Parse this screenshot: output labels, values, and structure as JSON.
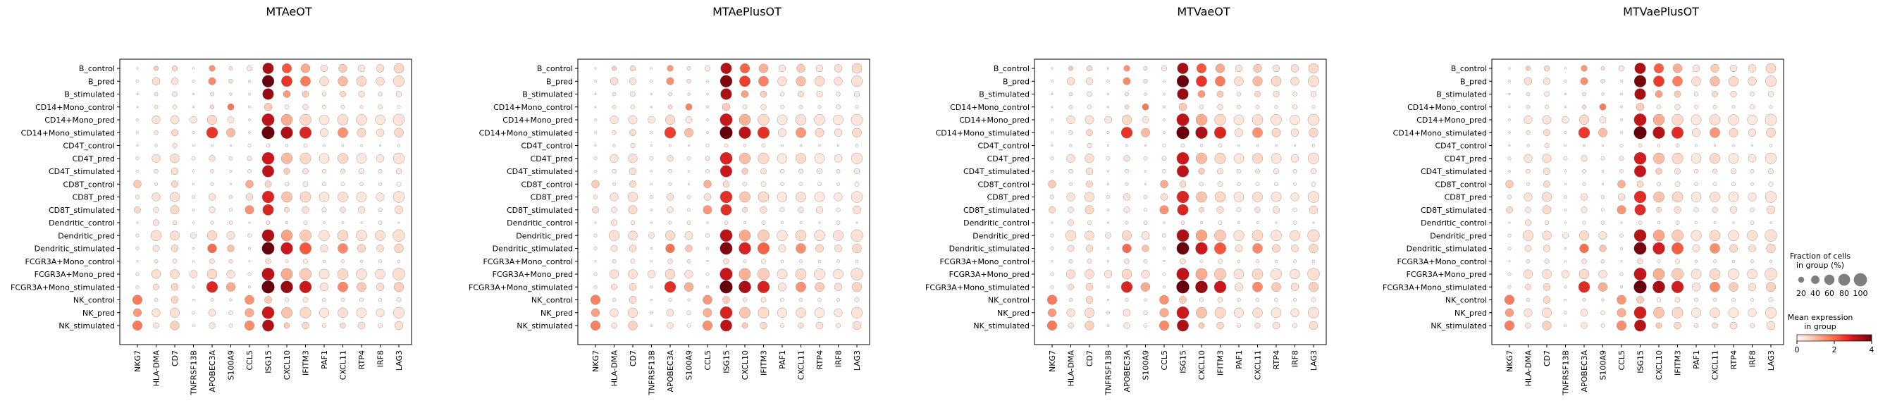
{
  "chart_data": {
    "type": "dotplot",
    "genes": [
      "NKG7",
      "HLA-DMA",
      "CD7",
      "TNFRSF13B",
      "APOBEC3A",
      "S100A9",
      "CCL5",
      "ISG15",
      "CXCL10",
      "IFITM3",
      "PAF1",
      "CXCL11",
      "RTP4",
      "IRF8",
      "LAG3"
    ],
    "groups": [
      "B_control",
      "B_pred",
      "B_stimulated",
      "CD14+Mono_control",
      "CD14+Mono_pred",
      "CD14+Mono_stimulated",
      "CD4T_control",
      "CD4T_pred",
      "CD4T_stimulated",
      "CD8T_control",
      "CD8T_pred",
      "CD8T_stimulated",
      "Dendritic_control",
      "Dendritic_pred",
      "Dendritic_stimulated",
      "FCGR3A+Mono_control",
      "FCGR3A+Mono_pred",
      "FCGR3A+Mono_stimulated",
      "NK_control",
      "NK_pred",
      "NK_stimulated"
    ],
    "panels": [
      {
        "title": "MTAeOT"
      },
      {
        "title": "MTAePlusOT"
      },
      {
        "title": "MTVaeOT"
      },
      {
        "title": "MTVaePlusOT"
      }
    ],
    "fraction_pct": [
      [
        2,
        12,
        18,
        2,
        22,
        8,
        18,
        72,
        55,
        48,
        28,
        40,
        28,
        35,
        58
      ],
      [
        3,
        35,
        28,
        4,
        32,
        10,
        3,
        85,
        70,
        60,
        50,
        55,
        58,
        42,
        72
      ],
      [
        2,
        8,
        15,
        2,
        8,
        4,
        3,
        75,
        30,
        25,
        10,
        20,
        22,
        10,
        18
      ],
      [
        2,
        8,
        10,
        2,
        10,
        25,
        3,
        35,
        10,
        18,
        8,
        8,
        6,
        12,
        6
      ],
      [
        3,
        40,
        45,
        30,
        55,
        25,
        3,
        90,
        75,
        75,
        60,
        68,
        68,
        58,
        78
      ],
      [
        3,
        10,
        25,
        4,
        75,
        45,
        3,
        95,
        85,
        82,
        40,
        60,
        45,
        35,
        50
      ],
      [
        2,
        4,
        12,
        2,
        3,
        2,
        6,
        8,
        4,
        8,
        3,
        3,
        3,
        2,
        4
      ],
      [
        6,
        40,
        48,
        8,
        22,
        8,
        12,
        88,
        72,
        72,
        58,
        62,
        60,
        35,
        72
      ],
      [
        3,
        10,
        28,
        2,
        8,
        3,
        8,
        82,
        22,
        20,
        10,
        12,
        18,
        8,
        18
      ],
      [
        35,
        6,
        25,
        2,
        6,
        2,
        35,
        25,
        10,
        15,
        8,
        8,
        8,
        6,
        12
      ],
      [
        10,
        40,
        55,
        6,
        28,
        8,
        28,
        85,
        68,
        68,
        58,
        60,
        60,
        40,
        75
      ],
      [
        25,
        18,
        45,
        3,
        22,
        6,
        45,
        72,
        15,
        28,
        12,
        18,
        28,
        10,
        40
      ],
      [
        2,
        22,
        10,
        2,
        6,
        8,
        2,
        8,
        4,
        8,
        3,
        3,
        2,
        8,
        2
      ],
      [
        6,
        65,
        50,
        20,
        55,
        38,
        8,
        88,
        75,
        78,
        65,
        68,
        68,
        62,
        82
      ],
      [
        6,
        25,
        28,
        3,
        48,
        28,
        4,
        90,
        85,
        80,
        32,
        58,
        38,
        30,
        48
      ],
      [
        2,
        8,
        12,
        2,
        14,
        8,
        2,
        18,
        6,
        12,
        4,
        6,
        4,
        6,
        4
      ],
      [
        6,
        48,
        50,
        35,
        58,
        40,
        6,
        92,
        78,
        80,
        60,
        68,
        68,
        58,
        85
      ],
      [
        6,
        20,
        30,
        4,
        75,
        48,
        4,
        96,
        88,
        85,
        40,
        60,
        50,
        35,
        55
      ],
      [
        55,
        8,
        30,
        2,
        6,
        4,
        50,
        30,
        10,
        15,
        8,
        8,
        8,
        6,
        12
      ],
      [
        40,
        40,
        55,
        5,
        30,
        10,
        45,
        88,
        70,
        70,
        55,
        58,
        58,
        40,
        72
      ],
      [
        55,
        18,
        48,
        3,
        22,
        8,
        55,
        80,
        20,
        28,
        10,
        18,
        30,
        12,
        42
      ]
    ],
    "mean_expression": [
      [
        0.05,
        0.8,
        0.6,
        0.05,
        1.5,
        0.4,
        0.3,
        3.5,
        2.2,
        1.2,
        0.4,
        0.8,
        0.4,
        0.5,
        0.6
      ],
      [
        0.05,
        0.5,
        0.4,
        0.05,
        1.6,
        0.5,
        0.1,
        4.0,
        2.6,
        1.8,
        0.5,
        1.0,
        0.6,
        0.5,
        0.5
      ],
      [
        0.05,
        0.3,
        0.3,
        0.05,
        0.4,
        0.2,
        0.1,
        3.6,
        1.4,
        0.8,
        0.3,
        0.6,
        0.4,
        0.3,
        0.3
      ],
      [
        0.05,
        0.3,
        0.2,
        0.05,
        0.6,
        1.8,
        0.1,
        0.8,
        0.2,
        0.3,
        0.2,
        0.2,
        0.2,
        0.2,
        0.1
      ],
      [
        0.05,
        0.4,
        0.4,
        0.3,
        0.6,
        0.3,
        0.1,
        3.2,
        1.2,
        0.6,
        0.3,
        0.5,
        0.4,
        0.3,
        0.4
      ],
      [
        0.05,
        0.4,
        0.6,
        0.05,
        2.6,
        1.0,
        0.1,
        4.6,
        3.4,
        2.8,
        0.4,
        1.5,
        0.6,
        0.4,
        0.6
      ],
      [
        0.05,
        0.1,
        0.3,
        0.05,
        0.1,
        0.05,
        0.1,
        0.2,
        0.1,
        0.1,
        0.05,
        0.05,
        0.05,
        0.05,
        0.05
      ],
      [
        0.2,
        0.4,
        0.5,
        0.1,
        0.4,
        0.2,
        0.3,
        3.0,
        1.0,
        0.6,
        0.3,
        0.6,
        0.3,
        0.3,
        0.4
      ],
      [
        0.1,
        0.3,
        0.5,
        0.05,
        0.2,
        0.05,
        0.2,
        3.2,
        0.8,
        0.4,
        0.2,
        0.4,
        0.3,
        0.2,
        0.3
      ],
      [
        0.8,
        0.2,
        0.6,
        0.05,
        0.2,
        0.05,
        1.2,
        0.6,
        0.2,
        0.2,
        0.1,
        0.1,
        0.1,
        0.1,
        0.1
      ],
      [
        0.3,
        0.4,
        0.5,
        0.1,
        0.4,
        0.2,
        0.5,
        2.8,
        0.9,
        0.6,
        0.3,
        0.5,
        0.3,
        0.3,
        0.4
      ],
      [
        0.6,
        0.3,
        0.6,
        0.05,
        0.3,
        0.1,
        1.5,
        2.8,
        0.6,
        0.5,
        0.2,
        0.4,
        0.4,
        0.2,
        0.5
      ],
      [
        0.05,
        0.4,
        0.3,
        0.05,
        0.3,
        0.3,
        0.05,
        0.3,
        0.1,
        0.1,
        0.05,
        0.05,
        0.05,
        0.2,
        0.05
      ],
      [
        0.2,
        0.5,
        0.5,
        0.3,
        0.6,
        0.4,
        0.2,
        3.4,
        1.3,
        0.8,
        0.4,
        0.6,
        0.4,
        0.5,
        0.5
      ],
      [
        0.2,
        0.4,
        0.5,
        0.1,
        2.0,
        0.9,
        0.1,
        4.0,
        3.0,
        2.2,
        0.4,
        1.6,
        0.6,
        0.5,
        0.6
      ],
      [
        0.05,
        0.3,
        0.3,
        0.05,
        0.4,
        0.3,
        0.05,
        0.5,
        0.1,
        0.2,
        0.1,
        0.1,
        0.1,
        0.1,
        0.1
      ],
      [
        0.2,
        0.5,
        0.5,
        0.4,
        0.6,
        0.4,
        0.2,
        3.2,
        1.2,
        0.8,
        0.4,
        0.6,
        0.4,
        0.4,
        0.5
      ],
      [
        0.2,
        0.5,
        0.6,
        0.1,
        2.8,
        1.2,
        0.1,
        4.6,
        3.6,
        3.0,
        0.4,
        1.6,
        0.8,
        0.5,
        0.7
      ],
      [
        1.8,
        0.3,
        0.6,
        0.05,
        0.2,
        0.1,
        1.5,
        0.8,
        0.2,
        0.3,
        0.2,
        0.2,
        0.2,
        0.1,
        0.2
      ],
      [
        1.4,
        0.4,
        0.5,
        0.1,
        0.4,
        0.2,
        1.2,
        3.0,
        0.9,
        0.6,
        0.3,
        0.5,
        0.3,
        0.3,
        0.4
      ],
      [
        1.8,
        0.4,
        0.7,
        0.05,
        0.3,
        0.1,
        1.6,
        3.4,
        0.8,
        0.6,
        0.3,
        0.5,
        0.4,
        0.3,
        0.5
      ]
    ],
    "panel_factors": [
      1.0,
      0.95,
      1.0,
      0.97
    ],
    "size_legend": {
      "title_line1": "Fraction of cells",
      "title_line2": "in group (%)",
      "values": [
        20,
        40,
        60,
        80,
        100
      ],
      "labels": [
        "20",
        "40",
        "60",
        "80",
        "100"
      ]
    },
    "color_legend": {
      "title_line1": "Mean expression",
      "title_line2": "in group",
      "range": [
        0,
        4
      ],
      "ticks": [
        "0",
        "2",
        "4"
      ],
      "colormap": "Reds",
      "colors": [
        "#fff5f0",
        "#fee0d2",
        "#fcbba1",
        "#fc9272",
        "#fb6a4a",
        "#ef3b2c",
        "#cb181d",
        "#a50f15",
        "#67000d"
      ]
    }
  }
}
